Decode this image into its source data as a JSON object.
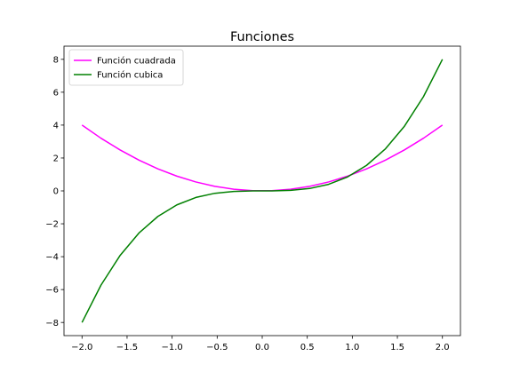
{
  "chart_data": {
    "type": "line",
    "title": "Funciones",
    "xlabel": "",
    "ylabel": "",
    "xlim": [
      -2.2,
      2.2
    ],
    "ylim": [
      -8.8,
      8.8
    ],
    "xticks": [
      -2.0,
      -1.5,
      -1.0,
      -0.5,
      0.0,
      0.5,
      1.0,
      1.5,
      2.0
    ],
    "xtick_labels": [
      "−2.0",
      "−1.5",
      "−1.0",
      "−0.5",
      "0.0",
      "0.5",
      "1.0",
      "1.5",
      "2.0"
    ],
    "yticks": [
      -8,
      -6,
      -4,
      -2,
      0,
      2,
      4,
      6,
      8
    ],
    "ytick_labels": [
      "−8",
      "−6",
      "−4",
      "−2",
      "0",
      "2",
      "4",
      "6",
      "8"
    ],
    "grid": false,
    "legend_position": "top-left",
    "x": [
      -2.0,
      -1.7895,
      -1.5789,
      -1.3684,
      -1.1579,
      -0.9474,
      -0.7368,
      -0.5263,
      -0.3158,
      -0.1053,
      0.1053,
      0.3158,
      0.5263,
      0.7368,
      0.9474,
      1.1579,
      1.3684,
      1.5789,
      1.7895,
      2.0
    ],
    "series": [
      {
        "name": "Función cuadrada",
        "color": "#ff00ff",
        "values": [
          4.0,
          3.2022,
          2.4931,
          1.8726,
          1.3407,
          0.8975,
          0.5429,
          0.277,
          0.0997,
          0.0111,
          0.0111,
          0.0997,
          0.277,
          0.5429,
          0.8975,
          1.3407,
          1.8726,
          2.4931,
          3.2022,
          4.0
        ]
      },
      {
        "name": "Función cubica",
        "color": "#008000",
        "values": [
          -8.0,
          -5.7305,
          -3.9364,
          -2.5625,
          -1.5524,
          -0.8503,
          -0.4,
          -0.1458,
          -0.0315,
          -0.0012,
          0.0012,
          0.0315,
          0.1458,
          0.4,
          0.8503,
          1.5524,
          2.5625,
          3.9364,
          5.7305,
          8.0
        ]
      }
    ]
  }
}
